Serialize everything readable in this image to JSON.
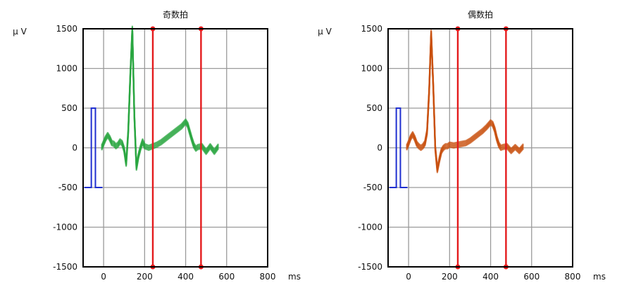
{
  "chart_data": [
    {
      "type": "line",
      "title": "奇数拍",
      "ylabel": "μ V",
      "xlabel": "ms",
      "xlim": [
        -100,
        800
      ],
      "ylim": [
        -1500,
        1500
      ],
      "x_ticks": [
        "0",
        "200",
        "400",
        "600",
        "800"
      ],
      "y_ticks": [
        "1500",
        "1000",
        "500",
        "0",
        "-500",
        "-1000",
        "-1500"
      ],
      "grid": true,
      "trace_color": "#2aa640",
      "markers": {
        "color": "#e41a1c",
        "x": [
          240,
          475
        ]
      },
      "calibration": {
        "color": "#1f2fd0",
        "x": [
          -60,
          -40
        ],
        "y": [
          -500,
          500
        ]
      },
      "series": [
        {
          "x": [
            -10,
            0,
            10,
            20,
            30,
            40,
            50,
            60,
            70,
            80,
            90,
            100,
            110,
            120,
            130,
            140,
            150,
            160,
            170,
            180,
            190,
            200,
            220,
            240,
            260,
            280,
            300,
            320,
            340,
            360,
            380,
            400,
            410,
            420,
            430,
            440,
            450,
            460,
            480,
            500,
            520,
            540,
            560
          ],
          "y": [
            0,
            60,
            120,
            160,
            120,
            60,
            50,
            20,
            40,
            80,
            60,
            -20,
            -200,
            200,
            900,
            1500,
            400,
            -250,
            -100,
            0,
            80,
            20,
            0,
            20,
            40,
            70,
            110,
            150,
            190,
            230,
            270,
            330,
            290,
            200,
            110,
            30,
            -10,
            10,
            20,
            -50,
            20,
            -50,
            20
          ]
        }
      ]
    },
    {
      "type": "line",
      "title": "偶数拍",
      "ylabel": "μ V",
      "xlabel": "ms",
      "xlim": [
        -100,
        800
      ],
      "ylim": [
        -1500,
        1500
      ],
      "x_ticks": [
        "0",
        "200",
        "400",
        "600",
        "800"
      ],
      "y_ticks": [
        "1500",
        "1000",
        "500",
        "0",
        "-500",
        "-1000",
        "-1500"
      ],
      "grid": true,
      "trace_color": "#c8500f",
      "markers": {
        "color": "#e41a1c",
        "x": [
          240,
          475
        ]
      },
      "calibration": {
        "color": "#1f2fd0",
        "x": [
          -60,
          -40
        ],
        "y": [
          -500,
          500
        ]
      },
      "series": [
        {
          "x": [
            -10,
            0,
            10,
            20,
            30,
            40,
            50,
            60,
            70,
            80,
            90,
            100,
            110,
            120,
            130,
            140,
            150,
            160,
            170,
            180,
            190,
            200,
            220,
            240,
            260,
            280,
            300,
            320,
            340,
            360,
            380,
            400,
            410,
            420,
            430,
            440,
            450,
            460,
            480,
            500,
            520,
            540,
            560
          ],
          "y": [
            0,
            60,
            130,
            170,
            120,
            50,
            20,
            0,
            20,
            60,
            200,
            700,
            1450,
            800,
            0,
            -280,
            -150,
            -40,
            0,
            20,
            20,
            40,
            30,
            40,
            50,
            60,
            90,
            130,
            170,
            210,
            260,
            320,
            300,
            230,
            120,
            40,
            0,
            10,
            20,
            -40,
            10,
            -40,
            20
          ]
        }
      ]
    }
  ]
}
